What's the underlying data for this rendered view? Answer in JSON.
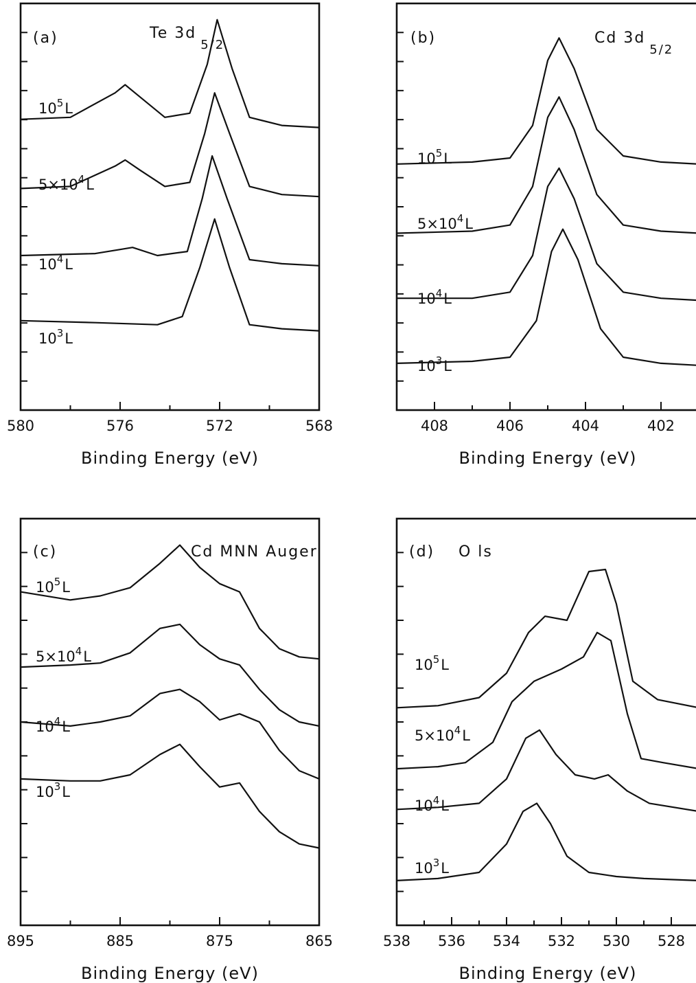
{
  "chart_data": [
    {
      "type": "line",
      "panel_label": "(a)",
      "title_main": "Te 3d",
      "title_sub": "5/2",
      "xlabel": "Binding Energy (eV)",
      "xlim": [
        580,
        568
      ],
      "xticks": [
        580,
        576,
        572,
        568
      ],
      "series": [
        {
          "name": "10⁵L",
          "label_main": "10",
          "label_exp": "5",
          "label_unit": "L",
          "x": [
            580,
            578,
            576.2,
            575.8,
            575.2,
            574.2,
            573.2,
            572.5,
            572.1,
            571.5,
            570.8,
            569.5,
            568
          ],
          "y": [
            0.715,
            0.72,
            0.78,
            0.8,
            0.77,
            0.72,
            0.73,
            0.85,
            0.96,
            0.84,
            0.72,
            0.7,
            0.695
          ]
        },
        {
          "name": "5×10⁴L",
          "label_main": "5×10",
          "label_exp": "4",
          "label_unit": "L",
          "x": [
            580,
            578,
            576.2,
            575.8,
            575.2,
            574.2,
            573.2,
            572.6,
            572.2,
            571.6,
            570.8,
            569.5,
            568
          ],
          "y": [
            0.545,
            0.55,
            0.6,
            0.615,
            0.59,
            0.55,
            0.56,
            0.68,
            0.78,
            0.68,
            0.55,
            0.53,
            0.525
          ]
        },
        {
          "name": "10⁴L",
          "label_main": "10",
          "label_exp": "4",
          "label_unit": "L",
          "x": [
            580,
            577,
            576,
            575.5,
            574.5,
            573.3,
            572.7,
            572.3,
            571.7,
            570.8,
            569.5,
            568
          ],
          "y": [
            0.38,
            0.385,
            0.395,
            0.4,
            0.38,
            0.39,
            0.52,
            0.625,
            0.52,
            0.37,
            0.36,
            0.355
          ]
        },
        {
          "name": "10³L",
          "label_main": "10",
          "label_exp": "3",
          "label_unit": "L",
          "x": [
            580,
            577,
            574.5,
            573.5,
            572.8,
            572.2,
            571.6,
            570.8,
            569.5,
            568
          ],
          "y": [
            0.22,
            0.215,
            0.21,
            0.23,
            0.35,
            0.47,
            0.35,
            0.21,
            0.2,
            0.195
          ]
        }
      ]
    },
    {
      "type": "line",
      "panel_label": "(b)",
      "title_main": "Cd 3d",
      "title_sub": "5/2",
      "xlabel": "Binding Energy (eV)",
      "xlim": [
        409,
        401
      ],
      "xticks": [
        408,
        406,
        404,
        402
      ],
      "series": [
        {
          "name": "10⁵L",
          "label_main": "10",
          "label_exp": "5",
          "label_unit": "L",
          "x": [
            409,
            407,
            406,
            405.4,
            405,
            404.7,
            404.3,
            403.7,
            403,
            402,
            401
          ],
          "y": [
            0.605,
            0.61,
            0.62,
            0.7,
            0.86,
            0.915,
            0.84,
            0.69,
            0.625,
            0.61,
            0.605
          ]
        },
        {
          "name": "5×10⁴L",
          "label_main": "5×10",
          "label_exp": "4",
          "label_unit": "L",
          "x": [
            409,
            407,
            406,
            405.4,
            405,
            404.7,
            404.3,
            403.7,
            403,
            402,
            401
          ],
          "y": [
            0.435,
            0.44,
            0.455,
            0.55,
            0.72,
            0.77,
            0.69,
            0.53,
            0.455,
            0.44,
            0.435
          ]
        },
        {
          "name": "10⁴L",
          "label_main": "10",
          "label_exp": "4",
          "label_unit": "L",
          "x": [
            409,
            407,
            406,
            405.4,
            405,
            404.7,
            404.3,
            403.7,
            403,
            402,
            401
          ],
          "y": [
            0.275,
            0.275,
            0.29,
            0.38,
            0.55,
            0.595,
            0.52,
            0.36,
            0.29,
            0.275,
            0.27
          ]
        },
        {
          "name": "10³L",
          "label_main": "10",
          "label_exp": "3",
          "label_unit": "L",
          "x": [
            409,
            407,
            406,
            405.3,
            404.9,
            404.6,
            404.2,
            403.6,
            403,
            402,
            401
          ],
          "y": [
            0.115,
            0.12,
            0.13,
            0.22,
            0.39,
            0.445,
            0.37,
            0.2,
            0.13,
            0.115,
            0.11
          ]
        }
      ]
    },
    {
      "type": "line",
      "panel_label": "(c)",
      "title_main": "Cd MNN Auger",
      "title_sub": "",
      "xlabel": "Binding Energy (eV)",
      "xlim": [
        895,
        865
      ],
      "xticks": [
        895,
        885,
        875,
        865
      ],
      "series": [
        {
          "name": "10⁵L",
          "label_main": "10",
          "label_exp": "5",
          "label_unit": "L",
          "x": [
            895,
            890,
            887,
            884,
            881,
            879,
            877,
            875,
            873,
            871,
            869,
            867,
            865
          ],
          "y": [
            0.82,
            0.8,
            0.81,
            0.83,
            0.89,
            0.935,
            0.88,
            0.84,
            0.82,
            0.73,
            0.68,
            0.66,
            0.655
          ]
        },
        {
          "name": "5×10⁴L",
          "label_main": "5×10",
          "label_exp": "4",
          "label_unit": "L",
          "x": [
            895,
            890,
            887,
            884,
            881,
            879,
            877,
            875,
            873,
            871,
            869,
            867,
            865
          ],
          "y": [
            0.635,
            0.64,
            0.645,
            0.67,
            0.73,
            0.74,
            0.69,
            0.655,
            0.64,
            0.58,
            0.53,
            0.5,
            0.49
          ]
        },
        {
          "name": "10⁴L",
          "label_main": "10",
          "label_exp": "4",
          "label_unit": "L",
          "x": [
            895,
            890,
            887,
            884,
            881,
            879,
            877,
            875,
            873,
            871,
            869,
            867,
            865
          ],
          "y": [
            0.5,
            0.49,
            0.5,
            0.515,
            0.57,
            0.58,
            0.55,
            0.505,
            0.52,
            0.5,
            0.43,
            0.38,
            0.36
          ]
        },
        {
          "name": "10³L",
          "label_main": "10",
          "label_exp": "3",
          "label_unit": "L",
          "x": [
            895,
            890,
            887,
            884,
            881,
            879,
            877,
            875,
            873,
            871,
            869,
            867,
            865
          ],
          "y": [
            0.36,
            0.355,
            0.355,
            0.37,
            0.42,
            0.445,
            0.39,
            0.34,
            0.35,
            0.28,
            0.23,
            0.2,
            0.19
          ]
        }
      ]
    },
    {
      "type": "line",
      "panel_label": "(d)",
      "title_main": "O ls",
      "title_sub": "",
      "xlabel": "Binding Energy (eV)",
      "xlim": [
        538,
        527
      ],
      "xticks": [
        538,
        536,
        534,
        532,
        530,
        528
      ],
      "series": [
        {
          "name": "10⁵L",
          "label_main": "10",
          "label_exp": "5",
          "label_unit": "L",
          "x": [
            538,
            536.5,
            535,
            534,
            533.2,
            532.6,
            531.8,
            531,
            530.4,
            530,
            529.4,
            528.5,
            527
          ],
          "y": [
            0.535,
            0.54,
            0.56,
            0.62,
            0.72,
            0.76,
            0.75,
            0.87,
            0.875,
            0.79,
            0.6,
            0.555,
            0.535
          ]
        },
        {
          "name": "5×10⁴L",
          "label_main": "5×10",
          "label_exp": "4",
          "label_unit": "L",
          "x": [
            538,
            536.5,
            535.5,
            534.5,
            533.8,
            533,
            532,
            531.2,
            530.7,
            530.2,
            529.6,
            529.1,
            528.3,
            527
          ],
          "y": [
            0.385,
            0.39,
            0.4,
            0.45,
            0.55,
            0.6,
            0.63,
            0.66,
            0.72,
            0.7,
            0.52,
            0.41,
            0.4,
            0.385
          ]
        },
        {
          "name": "10⁴L",
          "label_main": "10",
          "label_exp": "4",
          "label_unit": "L",
          "x": [
            538,
            536.5,
            535,
            534,
            533.3,
            532.8,
            532.2,
            531.5,
            530.8,
            530.3,
            529.6,
            528.8,
            527
          ],
          "y": [
            0.285,
            0.29,
            0.3,
            0.36,
            0.46,
            0.48,
            0.42,
            0.37,
            0.36,
            0.37,
            0.33,
            0.3,
            0.28
          ]
        },
        {
          "name": "10³L",
          "label_main": "10",
          "label_exp": "3",
          "label_unit": "L",
          "x": [
            538,
            536.5,
            535,
            534,
            533.4,
            532.9,
            532.4,
            531.8,
            531,
            530,
            529,
            527
          ],
          "y": [
            0.11,
            0.115,
            0.13,
            0.2,
            0.28,
            0.3,
            0.25,
            0.17,
            0.13,
            0.12,
            0.115,
            0.11
          ]
        }
      ]
    }
  ]
}
